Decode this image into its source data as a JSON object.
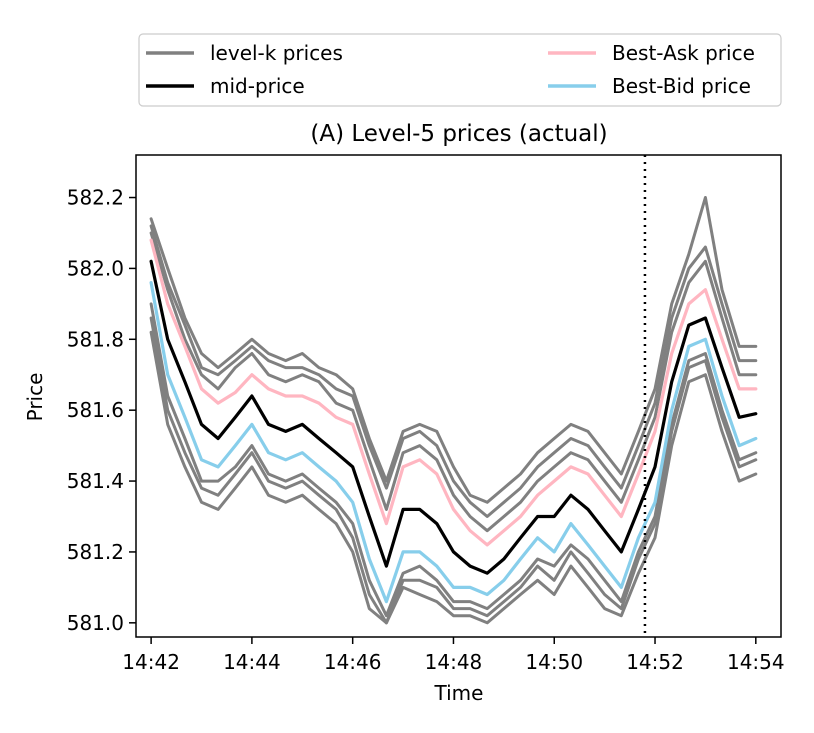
{
  "colors": {
    "levels": "#808080",
    "mid": "#000000",
    "ask": "#ffb6c1",
    "bid": "#87ceeb",
    "axis": "#000000"
  },
  "legend": {
    "items": [
      {
        "key": "levels",
        "label": "level-k prices"
      },
      {
        "key": "mid",
        "label": "mid-price"
      },
      {
        "key": "ask",
        "label": "Best-Ask price"
      },
      {
        "key": "bid",
        "label": "Best-Bid price"
      }
    ]
  },
  "chart_data": {
    "type": "line",
    "title": "(A) Level-5 prices (actual)",
    "xlabel": "Time",
    "ylabel": "Price",
    "x_unit": "minutes since 14:42",
    "xlim": [
      -0.3,
      12.5
    ],
    "ylim": [
      580.96,
      582.32
    ],
    "x_ticks": [
      0,
      2,
      4,
      6,
      8,
      10,
      12
    ],
    "x_tick_labels": [
      "14:42",
      "14:44",
      "14:46",
      "14:48",
      "14:50",
      "14:52",
      "14:54"
    ],
    "y_ticks": [
      581.0,
      581.2,
      581.4,
      581.6,
      581.8,
      582.0,
      582.2
    ],
    "y_tick_labels": [
      "581.0",
      "581.2",
      "581.4",
      "581.6",
      "581.8",
      "582.0",
      "582.2"
    ],
    "vline_x": 9.8,
    "x": [
      0,
      0.33,
      0.67,
      1.0,
      1.33,
      1.67,
      2.0,
      2.33,
      2.67,
      3.0,
      3.33,
      3.67,
      4.0,
      4.33,
      4.67,
      5.0,
      5.33,
      5.67,
      6.0,
      6.33,
      6.67,
      7.0,
      7.33,
      7.67,
      8.0,
      8.33,
      8.67,
      9.0,
      9.33,
      9.67,
      10.0,
      10.33,
      10.67,
      11.0,
      11.33,
      11.67,
      12.0
    ],
    "series": [
      {
        "name": "Best-Ask price",
        "key": "ask",
        "values": [
          582.08,
          581.9,
          581.78,
          581.66,
          581.62,
          581.65,
          581.7,
          581.66,
          581.64,
          581.64,
          581.62,
          581.58,
          581.56,
          581.42,
          581.28,
          581.44,
          581.46,
          581.42,
          581.32,
          581.26,
          581.22,
          581.26,
          581.3,
          581.36,
          581.4,
          581.44,
          581.42,
          581.36,
          581.3,
          581.42,
          581.54,
          581.76,
          581.9,
          581.94,
          581.8,
          581.66,
          581.66
        ]
      },
      {
        "name": "mid-price",
        "key": "mid",
        "values": [
          582.02,
          581.8,
          581.68,
          581.56,
          581.52,
          581.58,
          581.64,
          581.56,
          581.54,
          581.56,
          581.52,
          581.48,
          581.44,
          581.3,
          581.16,
          581.32,
          581.32,
          581.28,
          581.2,
          581.16,
          581.14,
          581.18,
          581.24,
          581.3,
          581.3,
          581.36,
          581.32,
          581.26,
          581.2,
          581.32,
          581.44,
          581.68,
          581.84,
          581.86,
          581.72,
          581.58,
          581.59
        ]
      },
      {
        "name": "Best-Bid price",
        "key": "bid",
        "values": [
          581.96,
          581.7,
          581.58,
          581.46,
          581.44,
          581.5,
          581.56,
          581.48,
          581.46,
          581.48,
          581.44,
          581.4,
          581.34,
          581.18,
          581.06,
          581.2,
          581.2,
          581.16,
          581.1,
          581.1,
          581.08,
          581.12,
          581.18,
          581.24,
          581.2,
          581.28,
          581.22,
          581.16,
          581.1,
          581.24,
          581.34,
          581.6,
          581.78,
          581.8,
          581.64,
          581.5,
          581.52
        ]
      },
      {
        "name": "level-k prices",
        "key": "levels",
        "values": [
          582.12,
          581.96,
          581.84,
          581.72,
          581.7,
          581.74,
          581.78,
          581.74,
          581.72,
          581.72,
          581.7,
          581.66,
          581.64,
          581.5,
          581.38,
          581.52,
          581.54,
          581.5,
          581.4,
          581.34,
          581.3,
          581.34,
          581.38,
          581.44,
          581.48,
          581.52,
          581.5,
          581.44,
          581.38,
          581.5,
          581.62,
          581.86,
          582.0,
          582.06,
          581.9,
          581.74,
          581.74
        ]
      },
      {
        "name": "level-k prices",
        "key": "levels",
        "values": [
          582.1,
          581.94,
          581.8,
          581.7,
          581.66,
          581.72,
          581.76,
          581.7,
          581.68,
          581.7,
          581.68,
          581.62,
          581.6,
          581.46,
          581.32,
          581.48,
          581.5,
          581.46,
          581.36,
          581.3,
          581.26,
          581.3,
          581.34,
          581.4,
          581.44,
          581.48,
          581.46,
          581.4,
          581.34,
          581.46,
          581.58,
          581.82,
          581.96,
          582.02,
          581.86,
          581.7,
          581.7
        ]
      },
      {
        "name": "level-k prices",
        "key": "levels",
        "values": [
          582.14,
          582.0,
          581.86,
          581.76,
          581.72,
          581.76,
          581.8,
          581.76,
          581.74,
          581.76,
          581.72,
          581.7,
          581.66,
          581.52,
          581.4,
          581.54,
          581.56,
          581.54,
          581.44,
          581.36,
          581.34,
          581.38,
          581.42,
          581.48,
          581.52,
          581.56,
          581.54,
          581.48,
          581.42,
          581.54,
          581.66,
          581.9,
          582.04,
          582.2,
          581.94,
          581.78,
          581.78
        ]
      },
      {
        "name": "level-k prices",
        "key": "levels",
        "values": [
          581.86,
          581.6,
          581.48,
          581.38,
          581.36,
          581.42,
          581.48,
          581.4,
          581.38,
          581.4,
          581.36,
          581.32,
          581.24,
          581.08,
          581.0,
          581.12,
          581.12,
          581.1,
          581.04,
          581.04,
          581.02,
          581.06,
          581.1,
          581.16,
          581.12,
          581.2,
          581.14,
          581.08,
          581.04,
          581.18,
          581.28,
          581.54,
          581.72,
          581.74,
          581.58,
          581.44,
          581.46
        ]
      },
      {
        "name": "level-k prices",
        "key": "levels",
        "values": [
          581.9,
          581.64,
          581.52,
          581.4,
          581.4,
          581.44,
          581.5,
          581.42,
          581.4,
          581.42,
          581.38,
          581.34,
          581.28,
          581.12,
          581.02,
          581.14,
          581.16,
          581.12,
          581.06,
          581.06,
          581.04,
          581.08,
          581.12,
          581.18,
          581.16,
          581.22,
          581.18,
          581.12,
          581.06,
          581.2,
          581.3,
          581.56,
          581.74,
          581.76,
          581.6,
          581.46,
          581.48
        ]
      },
      {
        "name": "level-k prices",
        "key": "levels",
        "values": [
          581.82,
          581.56,
          581.44,
          581.34,
          581.32,
          581.38,
          581.44,
          581.36,
          581.34,
          581.36,
          581.32,
          581.28,
          581.2,
          581.04,
          581.0,
          581.1,
          581.08,
          581.06,
          581.02,
          581.02,
          581.0,
          581.04,
          581.08,
          581.12,
          581.08,
          581.16,
          581.1,
          581.04,
          581.02,
          581.14,
          581.24,
          581.5,
          581.68,
          581.7,
          581.54,
          581.4,
          581.42
        ]
      }
    ]
  }
}
